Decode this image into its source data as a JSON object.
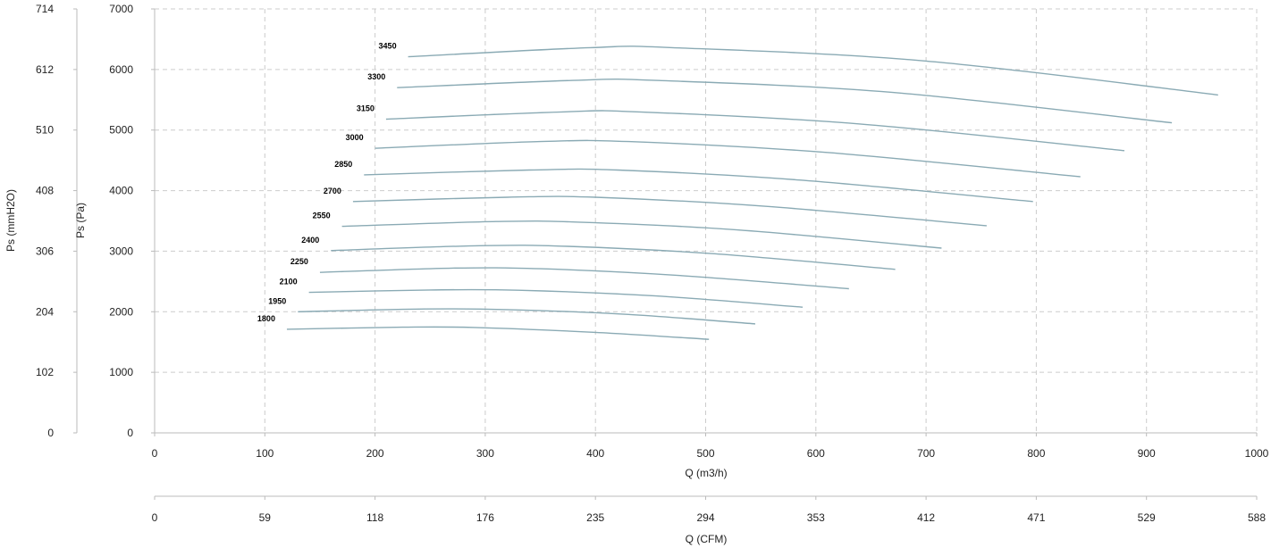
{
  "chart_data": {
    "type": "line",
    "xlabel": "Q (m3/h)",
    "x2label": "Q (CFM)",
    "ylabel": "Ps (Pa)",
    "y2label": "Ps (mmH2O)",
    "xlim": [
      0,
      1000
    ],
    "ylim": [
      0,
      7000
    ],
    "x_ticks": [
      "0",
      "100",
      "200",
      "300",
      "400",
      "500",
      "600",
      "700",
      "800",
      "900",
      "1000"
    ],
    "x2_ticks": [
      "0",
      "59",
      "118",
      "176",
      "235",
      "294",
      "353",
      "412",
      "471",
      "529",
      "588"
    ],
    "y_ticks": [
      "0",
      "1000",
      "2000",
      "3000",
      "4000",
      "5000",
      "6000",
      "7000"
    ],
    "y2_ticks": [
      "0",
      "102",
      "204",
      "306",
      "408",
      "510",
      "612",
      "714"
    ],
    "grid": true,
    "line_color": "#8aaab4",
    "series": [
      {
        "name": "1800",
        "points": [
          [
            120,
            1710
          ],
          [
            225,
            1745
          ],
          [
            290,
            1740
          ],
          [
            400,
            1660
          ],
          [
            503,
            1545
          ]
        ]
      },
      {
        "name": "1950",
        "points": [
          [
            130,
            2000
          ],
          [
            245,
            2045
          ],
          [
            320,
            2035
          ],
          [
            430,
            1955
          ],
          [
            545,
            1800
          ]
        ]
      },
      {
        "name": "2100",
        "points": [
          [
            140,
            2320
          ],
          [
            250,
            2360
          ],
          [
            330,
            2355
          ],
          [
            455,
            2260
          ],
          [
            588,
            2075
          ]
        ]
      },
      {
        "name": "2250",
        "points": [
          [
            150,
            2650
          ],
          [
            270,
            2720
          ],
          [
            350,
            2710
          ],
          [
            475,
            2600
          ],
          [
            630,
            2380
          ]
        ]
      },
      {
        "name": "2400",
        "points": [
          [
            160,
            3010
          ],
          [
            295,
            3090
          ],
          [
            375,
            3080
          ],
          [
            505,
            2960
          ],
          [
            672,
            2700
          ]
        ]
      },
      {
        "name": "2550",
        "points": [
          [
            170,
            3410
          ],
          [
            310,
            3490
          ],
          [
            385,
            3480
          ],
          [
            530,
            3350
          ],
          [
            714,
            3050
          ]
        ]
      },
      {
        "name": "2700",
        "points": [
          [
            180,
            3820
          ],
          [
            320,
            3890
          ],
          [
            400,
            3890
          ],
          [
            555,
            3740
          ],
          [
            755,
            3420
          ]
        ]
      },
      {
        "name": "2850",
        "points": [
          [
            190,
            4260
          ],
          [
            340,
            4340
          ],
          [
            420,
            4340
          ],
          [
            585,
            4175
          ],
          [
            797,
            3820
          ]
        ]
      },
      {
        "name": "3000",
        "points": [
          [
            200,
            4700
          ],
          [
            350,
            4810
          ],
          [
            430,
            4810
          ],
          [
            610,
            4630
          ],
          [
            840,
            4230
          ]
        ]
      },
      {
        "name": "3150",
        "points": [
          [
            210,
            5180
          ],
          [
            370,
            5300
          ],
          [
            440,
            5300
          ],
          [
            640,
            5100
          ],
          [
            880,
            4660
          ]
        ]
      },
      {
        "name": "3300",
        "points": [
          [
            220,
            5700
          ],
          [
            380,
            5820
          ],
          [
            455,
            5820
          ],
          [
            670,
            5620
          ],
          [
            923,
            5120
          ]
        ]
      },
      {
        "name": "3450",
        "points": [
          [
            230,
            6210
          ],
          [
            395,
            6360
          ],
          [
            470,
            6360
          ],
          [
            700,
            6140
          ],
          [
            965,
            5580
          ]
        ]
      }
    ]
  }
}
